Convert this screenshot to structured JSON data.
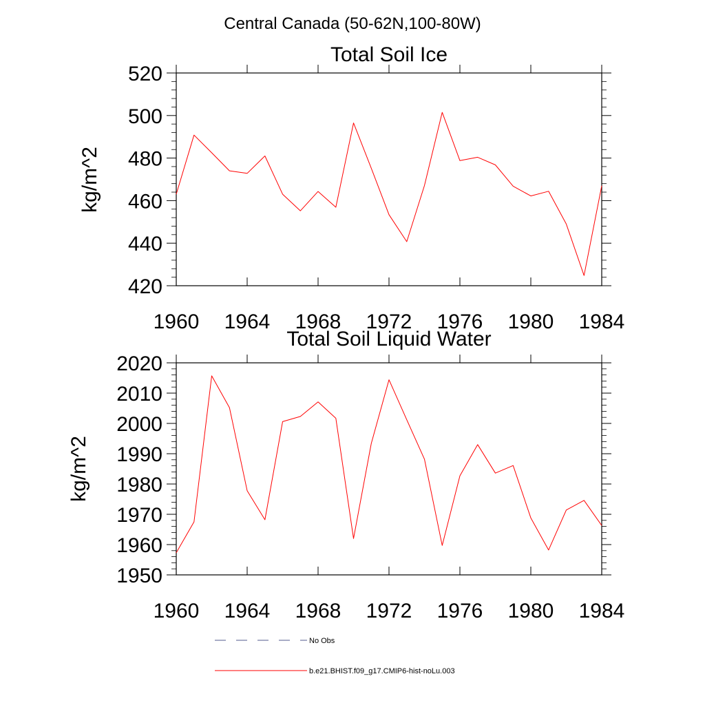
{
  "figure": {
    "suptitle": "Central Canada (50-62N,100-80W)"
  },
  "chart_data": [
    {
      "type": "line",
      "title": "Total Soil Ice",
      "xlabel": "",
      "ylabel": "kg/m^2",
      "xlim": [
        1960,
        1984
      ],
      "ylim": [
        420,
        520
      ],
      "xticks": [
        1960,
        1964,
        1968,
        1972,
        1976,
        1980,
        1984
      ],
      "yticks": [
        420,
        440,
        460,
        480,
        500,
        520
      ],
      "series": [
        {
          "name": "b.e21.BHIST.f09_g17.CMIP6-hist-noLu.003",
          "color": "#ff0000",
          "x": [
            1960,
            1961,
            1962,
            1963,
            1964,
            1965,
            1966,
            1967,
            1968,
            1969,
            1970,
            1971,
            1972,
            1973,
            1974,
            1975,
            1976,
            1977,
            1978,
            1979,
            1980,
            1981,
            1982,
            1983,
            1984
          ],
          "y": [
            463.0,
            490.8,
            482.5,
            474.0,
            472.8,
            481.0,
            463.0,
            455.2,
            464.3,
            456.9,
            496.5,
            475.2,
            453.4,
            440.7,
            467.1,
            501.5,
            478.8,
            480.4,
            476.8,
            466.8,
            462.2,
            464.4,
            449.0,
            424.8,
            467.0
          ]
        }
      ]
    },
    {
      "type": "line",
      "title": "Total Soil Liquid Water",
      "xlabel": "",
      "ylabel": "kg/m^2",
      "xlim": [
        1960,
        1984
      ],
      "ylim": [
        1950,
        2020
      ],
      "xticks": [
        1960,
        1964,
        1968,
        1972,
        1976,
        1980,
        1984
      ],
      "yticks": [
        1950,
        1960,
        1970,
        1980,
        1990,
        2000,
        2010,
        2020
      ],
      "series": [
        {
          "name": "b.e21.BHIST.f09_g17.CMIP6-hist-noLu.003",
          "color": "#ff0000",
          "x": [
            1960,
            1961,
            1962,
            1963,
            1964,
            1965,
            1966,
            1967,
            1968,
            1969,
            1970,
            1971,
            1972,
            1973,
            1974,
            1975,
            1976,
            1977,
            1978,
            1979,
            1980,
            1981,
            1982,
            1983,
            1984
          ],
          "y": [
            1957.3,
            1967.5,
            2015.7,
            2005.2,
            1977.8,
            1968.2,
            2000.6,
            2002.3,
            2007.1,
            2001.7,
            1962.0,
            1993.4,
            2014.4,
            2001.2,
            1988.2,
            1959.7,
            1982.7,
            1993.0,
            1983.6,
            1986.1,
            1968.8,
            1958.2,
            1971.4,
            1974.6,
            1966.3
          ]
        }
      ]
    }
  ],
  "legend": {
    "placement": "bottom",
    "entries": [
      {
        "label": "No Obs",
        "style": "dashed",
        "color": "#505a8c"
      },
      {
        "label": "b.e21.BHIST.f09_g17.CMIP6-hist-noLu.003",
        "style": "solid",
        "color": "#ff0000"
      }
    ]
  }
}
